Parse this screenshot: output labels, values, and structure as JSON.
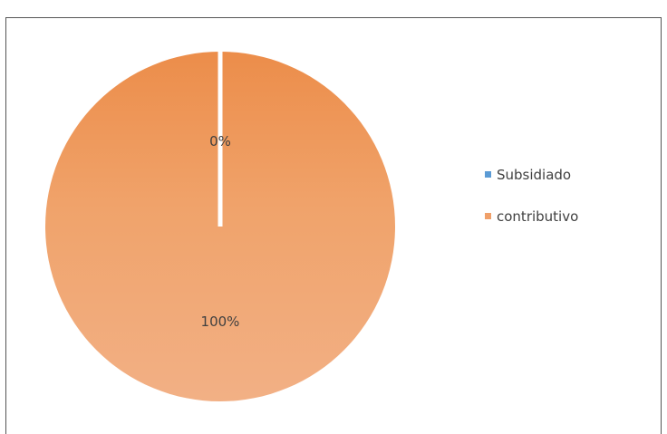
{
  "chart_data": {
    "type": "pie",
    "title": "",
    "categories": [
      "Subsidiado",
      "contributivo"
    ],
    "values": [
      0,
      100
    ],
    "labels": [
      "0%",
      "100%"
    ],
    "colors": [
      "#5B9BD5",
      "#ED7D31"
    ],
    "legend": "right",
    "start_angle": "12 o'clock",
    "direction": "clockwise"
  }
}
